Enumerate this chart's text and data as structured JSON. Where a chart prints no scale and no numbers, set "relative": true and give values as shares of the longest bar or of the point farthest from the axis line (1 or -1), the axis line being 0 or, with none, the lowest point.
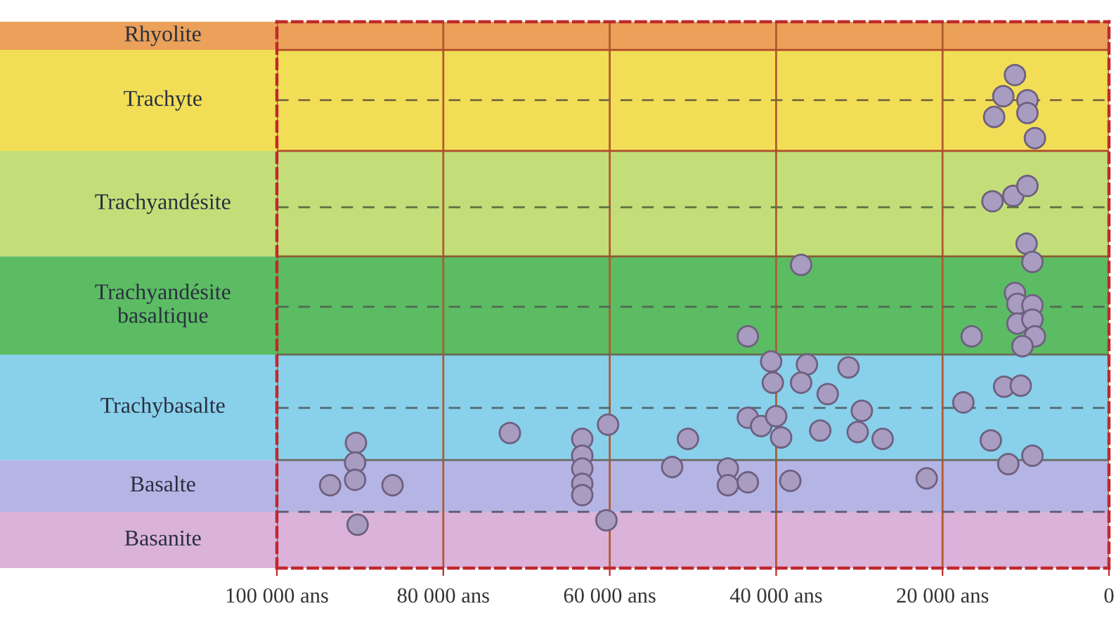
{
  "chart_data": {
    "type": "scatter",
    "relative": true,
    "x": [
      11300,
      12700,
      9800,
      13800,
      9800,
      8900,
      14000,
      11500,
      9800,
      37000,
      9900,
      9200,
      11300,
      11000,
      9200,
      11000,
      9200,
      8900,
      10400,
      16500,
      12600,
      10600,
      17500,
      14200,
      12100,
      9200,
      21900,
      43400,
      40600,
      36300,
      31300,
      40400,
      37000,
      33800,
      29700,
      43400,
      41800,
      40000,
      39400,
      34700,
      30200,
      27200,
      50600,
      52500,
      45800,
      45800,
      43400,
      38300,
      60200,
      60400,
      63300,
      63300,
      63300,
      63300,
      63300,
      72000,
      90500,
      90600,
      90600,
      93600,
      86100,
      90300
    ],
    "values": [
      1.0,
      0.957,
      0.949,
      0.915,
      0.923,
      0.872,
      0.744,
      0.755,
      0.775,
      0.615,
      0.658,
      0.621,
      0.558,
      0.536,
      0.533,
      0.496,
      0.504,
      0.47,
      0.45,
      0.47,
      0.368,
      0.37,
      0.336,
      0.259,
      0.211,
      0.228,
      0.182,
      0.47,
      0.419,
      0.413,
      0.407,
      0.376,
      0.376,
      0.353,
      0.319,
      0.305,
      0.288,
      0.308,
      0.265,
      0.279,
      0.276,
      0.262,
      0.262,
      0.205,
      0.202,
      0.168,
      0.174,
      0.177,
      0.291,
      0.097,
      0.262,
      0.228,
      0.202,
      0.171,
      0.148,
      0.274,
      0.254,
      0.214,
      0.179,
      0.168,
      0.168,
      0.088
    ],
    "color": "#a89cc0",
    "marker": "circle",
    "xlim": [
      100000,
      0
    ],
    "xticks": [
      {
        "value": 100000,
        "label": "100 000 ans"
      },
      {
        "value": 80000,
        "label": "80 000 ans"
      },
      {
        "value": 60000,
        "label": "60 000 ans"
      },
      {
        "value": 40000,
        "label": "40 000 ans"
      },
      {
        "value": 20000,
        "label": "20 000 ans"
      },
      0
    ],
    "grid": "x",
    "bands": [
      {
        "axis": "y",
        "from": 1.051,
        "to": 1.108,
        "label": "Rhyolite",
        "color": "#e8903c"
      },
      {
        "axis": "y",
        "from": 0.846,
        "to": 1.051,
        "label": "Trachyte",
        "color": "#f0d838"
      },
      {
        "axis": "y",
        "from": 0.632,
        "to": 0.846,
        "label": "Trachyandésite",
        "color": "#b8d860"
      },
      {
        "axis": "y",
        "from": 0.433,
        "to": 0.632,
        "label": "Trachyandésite\nbasaltique",
        "color": "#40b048"
      },
      {
        "axis": "y",
        "from": 0.219,
        "to": 0.433,
        "label": "Trachybasalte",
        "color": "#74c8e8"
      },
      {
        "axis": "y",
        "from": 0.114,
        "to": 0.219,
        "label": "Basalte",
        "color": "#a8a8e0"
      },
      {
        "axis": "y",
        "from": 0,
        "to": 0.114,
        "label": "Basanite",
        "color": "#d4a4d4"
      }
    ],
    "ref_lines": [
      {
        "axis": "y",
        "value": 1.051,
        "color": "#b04a2a",
        "line_style": "solid"
      },
      {
        "axis": "y",
        "value": 0.846,
        "color": "#b04a2a",
        "line_style": "solid"
      },
      {
        "axis": "y",
        "value": 0.632,
        "color": "#8a5a30",
        "line_style": "solid"
      },
      {
        "axis": "y",
        "value": 0.433,
        "color": "#6a6a50",
        "line_style": "solid"
      },
      {
        "axis": "y",
        "value": 0.219,
        "color": "#6a6a60",
        "line_style": "solid"
      },
      {
        "axis": "y",
        "value": 0.949,
        "color": "#7a6a40",
        "line_style": "dashed"
      },
      {
        "axis": "y",
        "value": 0.732,
        "color": "#5a7040",
        "line_style": "dashed"
      },
      {
        "axis": "y",
        "value": 0.53,
        "color": "#506a50",
        "line_style": "dashed"
      },
      {
        "axis": "y",
        "value": 0.325,
        "color": "#506a70",
        "line_style": "dashed"
      },
      {
        "axis": "y",
        "value": 0.114,
        "color": "#5a5a70",
        "line_style": "dashed"
      }
    ]
  }
}
